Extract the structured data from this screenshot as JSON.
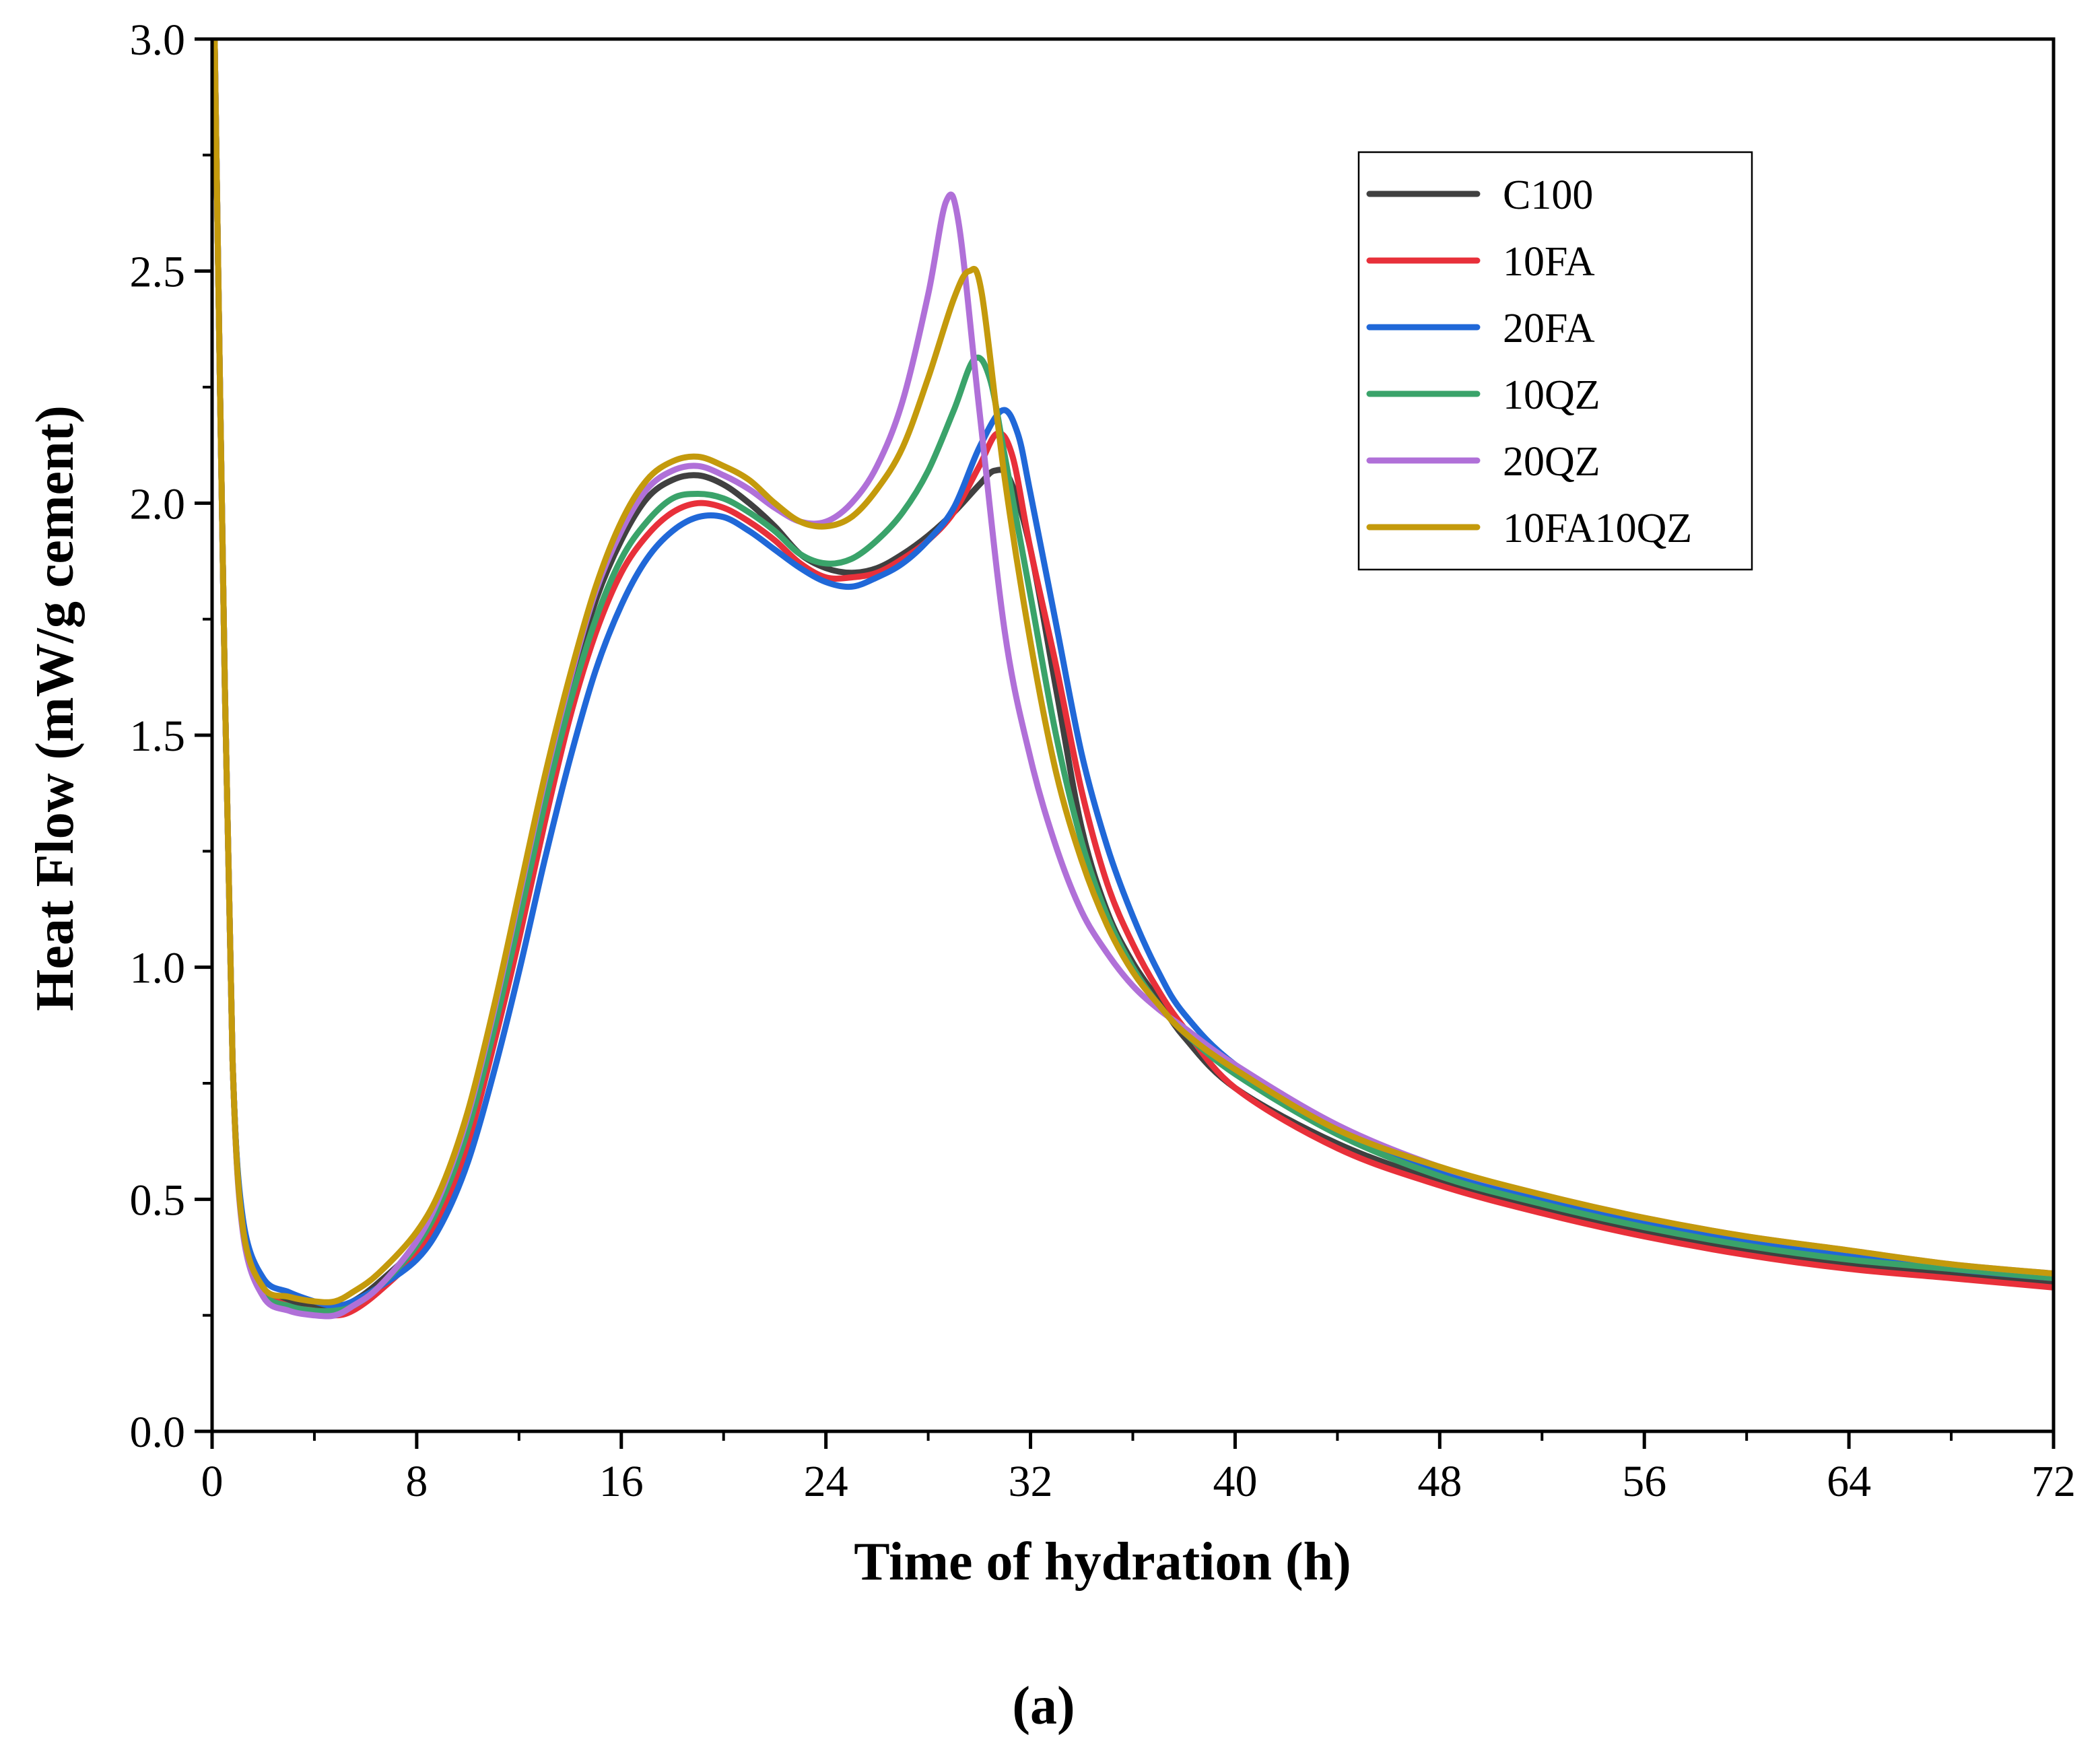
{
  "chart_data": {
    "type": "line",
    "title": "",
    "xlabel": "Time of hydration (h)",
    "ylabel": "Heat Flow (mW/g cement)",
    "caption_text": "(a)",
    "xlim": [
      0,
      72
    ],
    "ylim": [
      0,
      3.0
    ],
    "xticks": [
      0,
      8,
      16,
      24,
      32,
      40,
      48,
      56,
      64,
      72
    ],
    "yticks": [
      0.0,
      0.5,
      1.0,
      1.5,
      2.0,
      2.5,
      3.0
    ],
    "xtick_labels": [
      "0",
      "8",
      "16",
      "24",
      "32",
      "40",
      "48",
      "56",
      "64",
      "72"
    ],
    "ytick_labels": [
      "0.0",
      "0.5",
      "1.0",
      "1.5",
      "2.0",
      "2.5",
      "3.0"
    ],
    "legend_position": "top-right",
    "grid": false,
    "series": [
      {
        "name": "C100",
        "color": "#404040",
        "points": [
          [
            0.1,
            3.0
          ],
          [
            0.5,
            1.6
          ],
          [
            0.8,
            0.8
          ],
          [
            1.2,
            0.45
          ],
          [
            2,
            0.31
          ],
          [
            3,
            0.28
          ],
          [
            4,
            0.27
          ],
          [
            4.8,
            0.27
          ],
          [
            5.5,
            0.28
          ],
          [
            6.5,
            0.32
          ],
          [
            8,
            0.4
          ],
          [
            9,
            0.5
          ],
          [
            10,
            0.66
          ],
          [
            11,
            0.88
          ],
          [
            12,
            1.13
          ],
          [
            13,
            1.38
          ],
          [
            14,
            1.6
          ],
          [
            15,
            1.79
          ],
          [
            16,
            1.92
          ],
          [
            17,
            2.01
          ],
          [
            18,
            2.05
          ],
          [
            19,
            2.06
          ],
          [
            20,
            2.04
          ],
          [
            21,
            2.0
          ],
          [
            22,
            1.95
          ],
          [
            23,
            1.89
          ],
          [
            24,
            1.86
          ],
          [
            25,
            1.85
          ],
          [
            26,
            1.86
          ],
          [
            27,
            1.89
          ],
          [
            28,
            1.93
          ],
          [
            29,
            1.98
          ],
          [
            30,
            2.04
          ],
          [
            30.6,
            2.07
          ],
          [
            31.2,
            2.05
          ],
          [
            32,
            1.9
          ],
          [
            33,
            1.6
          ],
          [
            34,
            1.3
          ],
          [
            35,
            1.12
          ],
          [
            36,
            1.01
          ],
          [
            37,
            0.93
          ],
          [
            38,
            0.85
          ],
          [
            40,
            0.74
          ],
          [
            44,
            0.62
          ],
          [
            48,
            0.54
          ],
          [
            52,
            0.48
          ],
          [
            56,
            0.43
          ],
          [
            60,
            0.39
          ],
          [
            64,
            0.36
          ],
          [
            68,
            0.34
          ],
          [
            72,
            0.32
          ]
        ]
      },
      {
        "name": "10FA",
        "color": "#e8303a",
        "points": [
          [
            0.1,
            3.0
          ],
          [
            0.5,
            1.6
          ],
          [
            0.8,
            0.8
          ],
          [
            1.2,
            0.45
          ],
          [
            2,
            0.31
          ],
          [
            3,
            0.27
          ],
          [
            4,
            0.26
          ],
          [
            4.8,
            0.25
          ],
          [
            5.5,
            0.26
          ],
          [
            6.5,
            0.3
          ],
          [
            8,
            0.38
          ],
          [
            9,
            0.47
          ],
          [
            10,
            0.62
          ],
          [
            11,
            0.83
          ],
          [
            12,
            1.06
          ],
          [
            13,
            1.31
          ],
          [
            14,
            1.54
          ],
          [
            15,
            1.72
          ],
          [
            16,
            1.85
          ],
          [
            17,
            1.93
          ],
          [
            18,
            1.98
          ],
          [
            19,
            2.0
          ],
          [
            20,
            1.99
          ],
          [
            21,
            1.96
          ],
          [
            22,
            1.92
          ],
          [
            23,
            1.87
          ],
          [
            24,
            1.84
          ],
          [
            25,
            1.84
          ],
          [
            26,
            1.85
          ],
          [
            27,
            1.88
          ],
          [
            28,
            1.92
          ],
          [
            29,
            1.98
          ],
          [
            30,
            2.08
          ],
          [
            30.7,
            2.15
          ],
          [
            31.3,
            2.1
          ],
          [
            32,
            1.9
          ],
          [
            33,
            1.65
          ],
          [
            34,
            1.38
          ],
          [
            35,
            1.18
          ],
          [
            36,
            1.05
          ],
          [
            37,
            0.95
          ],
          [
            38,
            0.87
          ],
          [
            40,
            0.74
          ],
          [
            44,
            0.61
          ],
          [
            48,
            0.53
          ],
          [
            52,
            0.47
          ],
          [
            56,
            0.42
          ],
          [
            60,
            0.38
          ],
          [
            64,
            0.35
          ],
          [
            68,
            0.33
          ],
          [
            72,
            0.31
          ]
        ]
      },
      {
        "name": "20FA",
        "color": "#2068d8",
        "points": [
          [
            0.1,
            3.0
          ],
          [
            0.5,
            1.6
          ],
          [
            0.8,
            0.8
          ],
          [
            1.2,
            0.46
          ],
          [
            2,
            0.33
          ],
          [
            3,
            0.3
          ],
          [
            4,
            0.28
          ],
          [
            4.8,
            0.27
          ],
          [
            5.5,
            0.28
          ],
          [
            6.5,
            0.31
          ],
          [
            8,
            0.37
          ],
          [
            9,
            0.45
          ],
          [
            10,
            0.58
          ],
          [
            11,
            0.77
          ],
          [
            12,
            0.99
          ],
          [
            13,
            1.23
          ],
          [
            14,
            1.45
          ],
          [
            15,
            1.64
          ],
          [
            16,
            1.78
          ],
          [
            17,
            1.88
          ],
          [
            18,
            1.94
          ],
          [
            19,
            1.97
          ],
          [
            20,
            1.97
          ],
          [
            21,
            1.94
          ],
          [
            22,
            1.9
          ],
          [
            23,
            1.86
          ],
          [
            24,
            1.83
          ],
          [
            25,
            1.82
          ],
          [
            26,
            1.84
          ],
          [
            27,
            1.87
          ],
          [
            28,
            1.92
          ],
          [
            29,
            1.99
          ],
          [
            30,
            2.12
          ],
          [
            30.9,
            2.2
          ],
          [
            31.5,
            2.15
          ],
          [
            32,
            2.02
          ],
          [
            33,
            1.74
          ],
          [
            34,
            1.46
          ],
          [
            35,
            1.26
          ],
          [
            36,
            1.11
          ],
          [
            37,
            0.99
          ],
          [
            38,
            0.9
          ],
          [
            40,
            0.79
          ],
          [
            44,
            0.65
          ],
          [
            48,
            0.56
          ],
          [
            52,
            0.5
          ],
          [
            56,
            0.45
          ],
          [
            60,
            0.41
          ],
          [
            64,
            0.38
          ],
          [
            68,
            0.35
          ],
          [
            72,
            0.33
          ]
        ]
      },
      {
        "name": "10QZ",
        "color": "#3aa36a",
        "points": [
          [
            0.1,
            3.0
          ],
          [
            0.5,
            1.6
          ],
          [
            0.8,
            0.8
          ],
          [
            1.2,
            0.44
          ],
          [
            2,
            0.3
          ],
          [
            3,
            0.27
          ],
          [
            4,
            0.26
          ],
          [
            4.8,
            0.26
          ],
          [
            5.5,
            0.27
          ],
          [
            6.5,
            0.31
          ],
          [
            8,
            0.4
          ],
          [
            9,
            0.5
          ],
          [
            10,
            0.65
          ],
          [
            11,
            0.86
          ],
          [
            12,
            1.1
          ],
          [
            13,
            1.35
          ],
          [
            14,
            1.57
          ],
          [
            15,
            1.75
          ],
          [
            16,
            1.88
          ],
          [
            17,
            1.96
          ],
          [
            18,
            2.01
          ],
          [
            19,
            2.02
          ],
          [
            20,
            2.01
          ],
          [
            21,
            1.98
          ],
          [
            22,
            1.94
          ],
          [
            23,
            1.89
          ],
          [
            24,
            1.87
          ],
          [
            25,
            1.88
          ],
          [
            26,
            1.92
          ],
          [
            27,
            1.98
          ],
          [
            28,
            2.07
          ],
          [
            29,
            2.2
          ],
          [
            29.8,
            2.31
          ],
          [
            30.4,
            2.27
          ],
          [
            31,
            2.1
          ],
          [
            32,
            1.8
          ],
          [
            33,
            1.5
          ],
          [
            34,
            1.27
          ],
          [
            35,
            1.11
          ],
          [
            36,
            1.0
          ],
          [
            37,
            0.92
          ],
          [
            38,
            0.86
          ],
          [
            40,
            0.77
          ],
          [
            44,
            0.64
          ],
          [
            48,
            0.55
          ],
          [
            52,
            0.49
          ],
          [
            56,
            0.44
          ],
          [
            60,
            0.4
          ],
          [
            64,
            0.37
          ],
          [
            68,
            0.35
          ],
          [
            72,
            0.33
          ]
        ]
      },
      {
        "name": "20QZ",
        "color": "#b070d8",
        "points": [
          [
            0.1,
            3.0
          ],
          [
            0.5,
            1.6
          ],
          [
            0.8,
            0.8
          ],
          [
            1.2,
            0.43
          ],
          [
            2,
            0.29
          ],
          [
            3,
            0.26
          ],
          [
            4,
            0.25
          ],
          [
            4.8,
            0.25
          ],
          [
            5.5,
            0.27
          ],
          [
            6.5,
            0.31
          ],
          [
            8,
            0.41
          ],
          [
            9,
            0.52
          ],
          [
            10,
            0.68
          ],
          [
            11,
            0.9
          ],
          [
            12,
            1.15
          ],
          [
            13,
            1.4
          ],
          [
            14,
            1.62
          ],
          [
            15,
            1.81
          ],
          [
            16,
            1.94
          ],
          [
            17,
            2.03
          ],
          [
            18,
            2.07
          ],
          [
            19,
            2.08
          ],
          [
            20,
            2.06
          ],
          [
            21,
            2.03
          ],
          [
            22,
            1.99
          ],
          [
            23,
            1.96
          ],
          [
            24,
            1.96
          ],
          [
            25,
            2.0
          ],
          [
            26,
            2.08
          ],
          [
            27,
            2.22
          ],
          [
            28,
            2.45
          ],
          [
            28.7,
            2.65
          ],
          [
            29.2,
            2.6
          ],
          [
            30,
            2.2
          ],
          [
            31,
            1.72
          ],
          [
            32,
            1.45
          ],
          [
            33,
            1.26
          ],
          [
            34,
            1.12
          ],
          [
            35,
            1.03
          ],
          [
            36,
            0.96
          ],
          [
            37,
            0.91
          ],
          [
            38,
            0.87
          ],
          [
            40,
            0.79
          ],
          [
            44,
            0.66
          ],
          [
            48,
            0.57
          ],
          [
            52,
            0.51
          ],
          [
            56,
            0.46
          ],
          [
            60,
            0.42
          ],
          [
            64,
            0.39
          ],
          [
            68,
            0.36
          ],
          [
            72,
            0.34
          ]
        ]
      },
      {
        "name": "10FA10QZ",
        "color": "#c49a0c",
        "points": [
          [
            0.1,
            3.0
          ],
          [
            0.5,
            1.6
          ],
          [
            0.8,
            0.8
          ],
          [
            1.2,
            0.44
          ],
          [
            2,
            0.31
          ],
          [
            3,
            0.29
          ],
          [
            4,
            0.28
          ],
          [
            4.8,
            0.28
          ],
          [
            5.5,
            0.3
          ],
          [
            6.5,
            0.34
          ],
          [
            8,
            0.43
          ],
          [
            9,
            0.53
          ],
          [
            10,
            0.69
          ],
          [
            11,
            0.91
          ],
          [
            12,
            1.16
          ],
          [
            13,
            1.41
          ],
          [
            14,
            1.63
          ],
          [
            15,
            1.82
          ],
          [
            16,
            1.96
          ],
          [
            17,
            2.05
          ],
          [
            18,
            2.09
          ],
          [
            19,
            2.1
          ],
          [
            20,
            2.08
          ],
          [
            21,
            2.05
          ],
          [
            22,
            2.0
          ],
          [
            23,
            1.96
          ],
          [
            24,
            1.95
          ],
          [
            25,
            1.97
          ],
          [
            26,
            2.03
          ],
          [
            27,
            2.12
          ],
          [
            28,
            2.27
          ],
          [
            29,
            2.44
          ],
          [
            29.6,
            2.5
          ],
          [
            30.1,
            2.45
          ],
          [
            31,
            2.05
          ],
          [
            32,
            1.7
          ],
          [
            33,
            1.42
          ],
          [
            34,
            1.23
          ],
          [
            35,
            1.09
          ],
          [
            36,
            0.99
          ],
          [
            37,
            0.92
          ],
          [
            38,
            0.86
          ],
          [
            40,
            0.78
          ],
          [
            44,
            0.65
          ],
          [
            48,
            0.57
          ],
          [
            52,
            0.51
          ],
          [
            56,
            0.46
          ],
          [
            60,
            0.42
          ],
          [
            64,
            0.39
          ],
          [
            68,
            0.36
          ],
          [
            72,
            0.34
          ]
        ]
      }
    ]
  }
}
